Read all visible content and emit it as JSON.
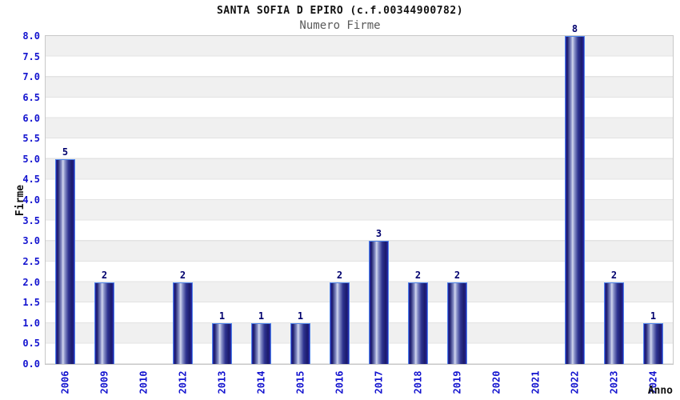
{
  "title": "SANTA SOFIA D EPIRO (c.f.00344900782)",
  "subtitle": "Numero Firme",
  "chart_data": {
    "type": "bar",
    "title": "SANTA SOFIA D EPIRO (c.f.00344900782)",
    "subtitle": "Numero Firme",
    "xlabel": "Anno",
    "ylabel": "Firme",
    "categories": [
      "2006",
      "2009",
      "2010",
      "2012",
      "2013",
      "2014",
      "2015",
      "2016",
      "2017",
      "2018",
      "2019",
      "2020",
      "2021",
      "2022",
      "2023",
      "2024"
    ],
    "values": [
      5,
      2,
      0,
      2,
      1,
      1,
      1,
      2,
      3,
      2,
      2,
      0,
      0,
      8,
      2,
      1
    ],
    "bar_value_labels": [
      "5",
      "2",
      "",
      "2",
      "1",
      "1",
      "1",
      "2",
      "3",
      "2",
      "2",
      "",
      "",
      "8",
      "2",
      "1"
    ],
    "ylim": [
      0,
      8
    ],
    "ytick_step": 0.5,
    "ytick_labels": [
      "0.0",
      "0.5",
      "1.0",
      "1.5",
      "2.0",
      "2.5",
      "3.0",
      "3.5",
      "4.0",
      "4.5",
      "5.0",
      "5.5",
      "6.0",
      "6.5",
      "7.0",
      "7.5",
      "8.0"
    ],
    "grid": true,
    "legend": "none",
    "background_bands": true,
    "colors": {
      "tick_label": "#1313cf",
      "value_label": "#00006e",
      "bar_dark": "#1a1a6a",
      "bar_light": "#d2d7ee",
      "bar_outline": "#4f85ea",
      "band_gray": "#f0f0f0",
      "grid_line": "#e3e3e3",
      "plot_border": "#c8c8c8",
      "subtitle_gray": "#5a5a5a"
    }
  }
}
